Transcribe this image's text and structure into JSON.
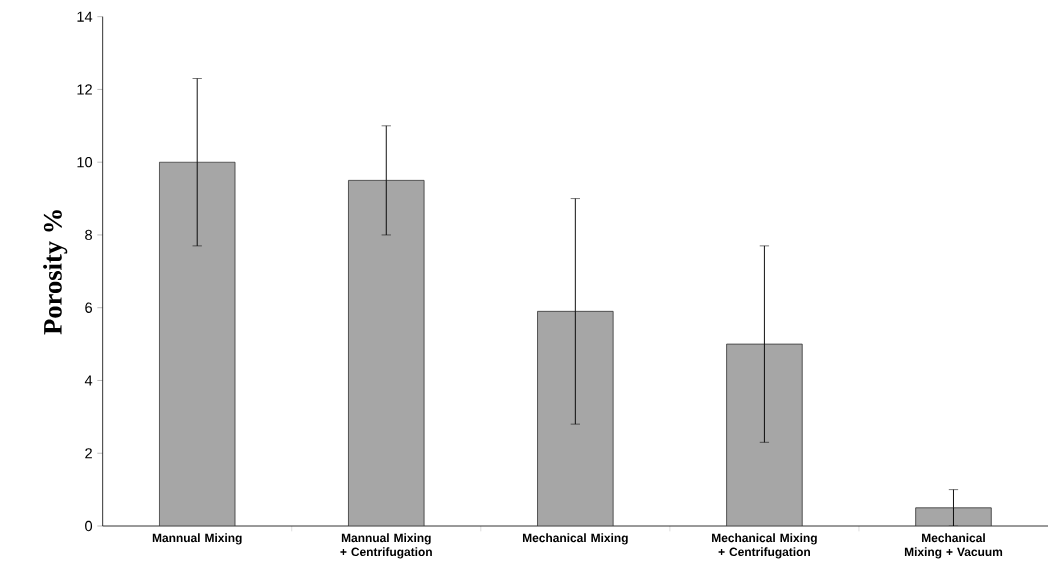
{
  "chart_data": {
    "type": "bar",
    "ylabel": "Porosity %",
    "categories": [
      "Mannual Mixing",
      "Mannual Mixing + Centrifugation",
      "Mechanical Mixing",
      "Mechanical Mixing + Centrifugation",
      "Mechanical Mixing + Vacuum"
    ],
    "values": [
      10.0,
      9.5,
      5.9,
      5.0,
      0.5
    ],
    "errors": [
      2.3,
      1.5,
      3.1,
      2.7,
      0.5
    ],
    "color": "#a6a6a6",
    "ylim": [
      0,
      14
    ],
    "yticks": [
      0,
      2,
      4,
      6,
      8,
      10,
      12,
      14
    ]
  }
}
